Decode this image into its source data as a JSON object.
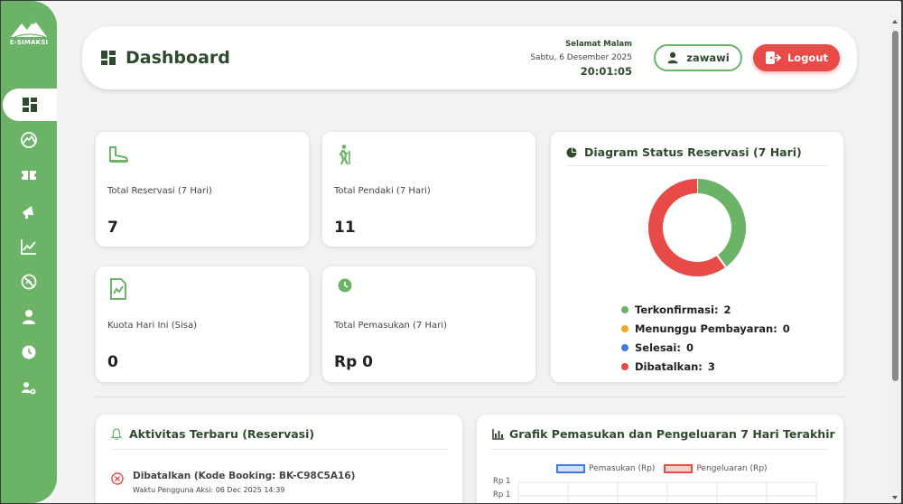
{
  "app": {
    "logo_text": "E-SIMAKSI",
    "brand_color": "#6ab367",
    "danger_color": "#e84a48"
  },
  "sidebar": {
    "items": [
      {
        "icon": "dashboard-icon",
        "active": true
      },
      {
        "icon": "mountain-icon",
        "active": false
      },
      {
        "icon": "ticket-icon",
        "active": false
      },
      {
        "icon": "megaphone-icon",
        "active": false
      },
      {
        "icon": "chart-line-icon",
        "active": false
      },
      {
        "icon": "no-entry-icon",
        "active": false
      },
      {
        "icon": "user-icon",
        "active": false
      },
      {
        "icon": "clock-icon",
        "active": false
      },
      {
        "icon": "users-cog-icon",
        "active": false
      }
    ]
  },
  "header": {
    "title": "Dashboard",
    "greeting": "Selamat Malam",
    "date": "Sabtu, 6 Desember 2025",
    "time": "20:01:05",
    "user_label": "zawawi",
    "logout_label": "Logout"
  },
  "stats": [
    {
      "icon": "boot-icon",
      "label": "Total Reservasi (7 Hari)",
      "value": "7"
    },
    {
      "icon": "hiker-icon",
      "label": "Total Pendaki (7 Hari)",
      "value": "11"
    },
    {
      "icon": "report-icon",
      "label": "Kuota Hari Ini (Sisa)",
      "value": "0"
    },
    {
      "icon": "clock-icon",
      "label": "Total Pemasukan (7 Hari)",
      "value": "Rp 0"
    }
  ],
  "donut": {
    "title": "Diagram Status Reservasi (7 Hari)",
    "items": [
      {
        "label": "Terkonfirmasi:",
        "value": "2",
        "count": 2,
        "color": "#6ab367"
      },
      {
        "label": "Menunggu Pembayaran:",
        "value": "0",
        "count": 0,
        "color": "#f5a623"
      },
      {
        "label": "Selesai:",
        "value": "0",
        "count": 0,
        "color": "#3b7ddd"
      },
      {
        "label": "Dibatalkan:",
        "value": "3",
        "count": 3,
        "color": "#e84a48"
      }
    ]
  },
  "activity": {
    "title": "Aktivitas Terbaru (Reservasi)",
    "items": [
      {
        "title": "Dibatalkan (Kode Booking: BK-C98C5A16)",
        "subtitle": "Waktu Pengguna Aksi: 06 Dec 2025 14:39"
      }
    ]
  },
  "finance_chart": {
    "title": "Grafik Pemasukan dan Pengeluaran 7 Hari Terakhir",
    "legend_income": "Pemasukan (Rp)",
    "legend_expense": "Pengeluaran (Rp)",
    "y_ticks": [
      "Rp 1",
      "Rp 1"
    ]
  },
  "chart_data": {
    "type": "pie",
    "categories": [
      "Terkonfirmasi",
      "Menunggu Pembayaran",
      "Selesai",
      "Dibatalkan"
    ],
    "values": [
      2,
      0,
      0,
      3
    ],
    "title": "Diagram Status Reservasi (7 Hari)",
    "colors": [
      "#6ab367",
      "#f5a623",
      "#3b7ddd",
      "#e84a48"
    ]
  }
}
